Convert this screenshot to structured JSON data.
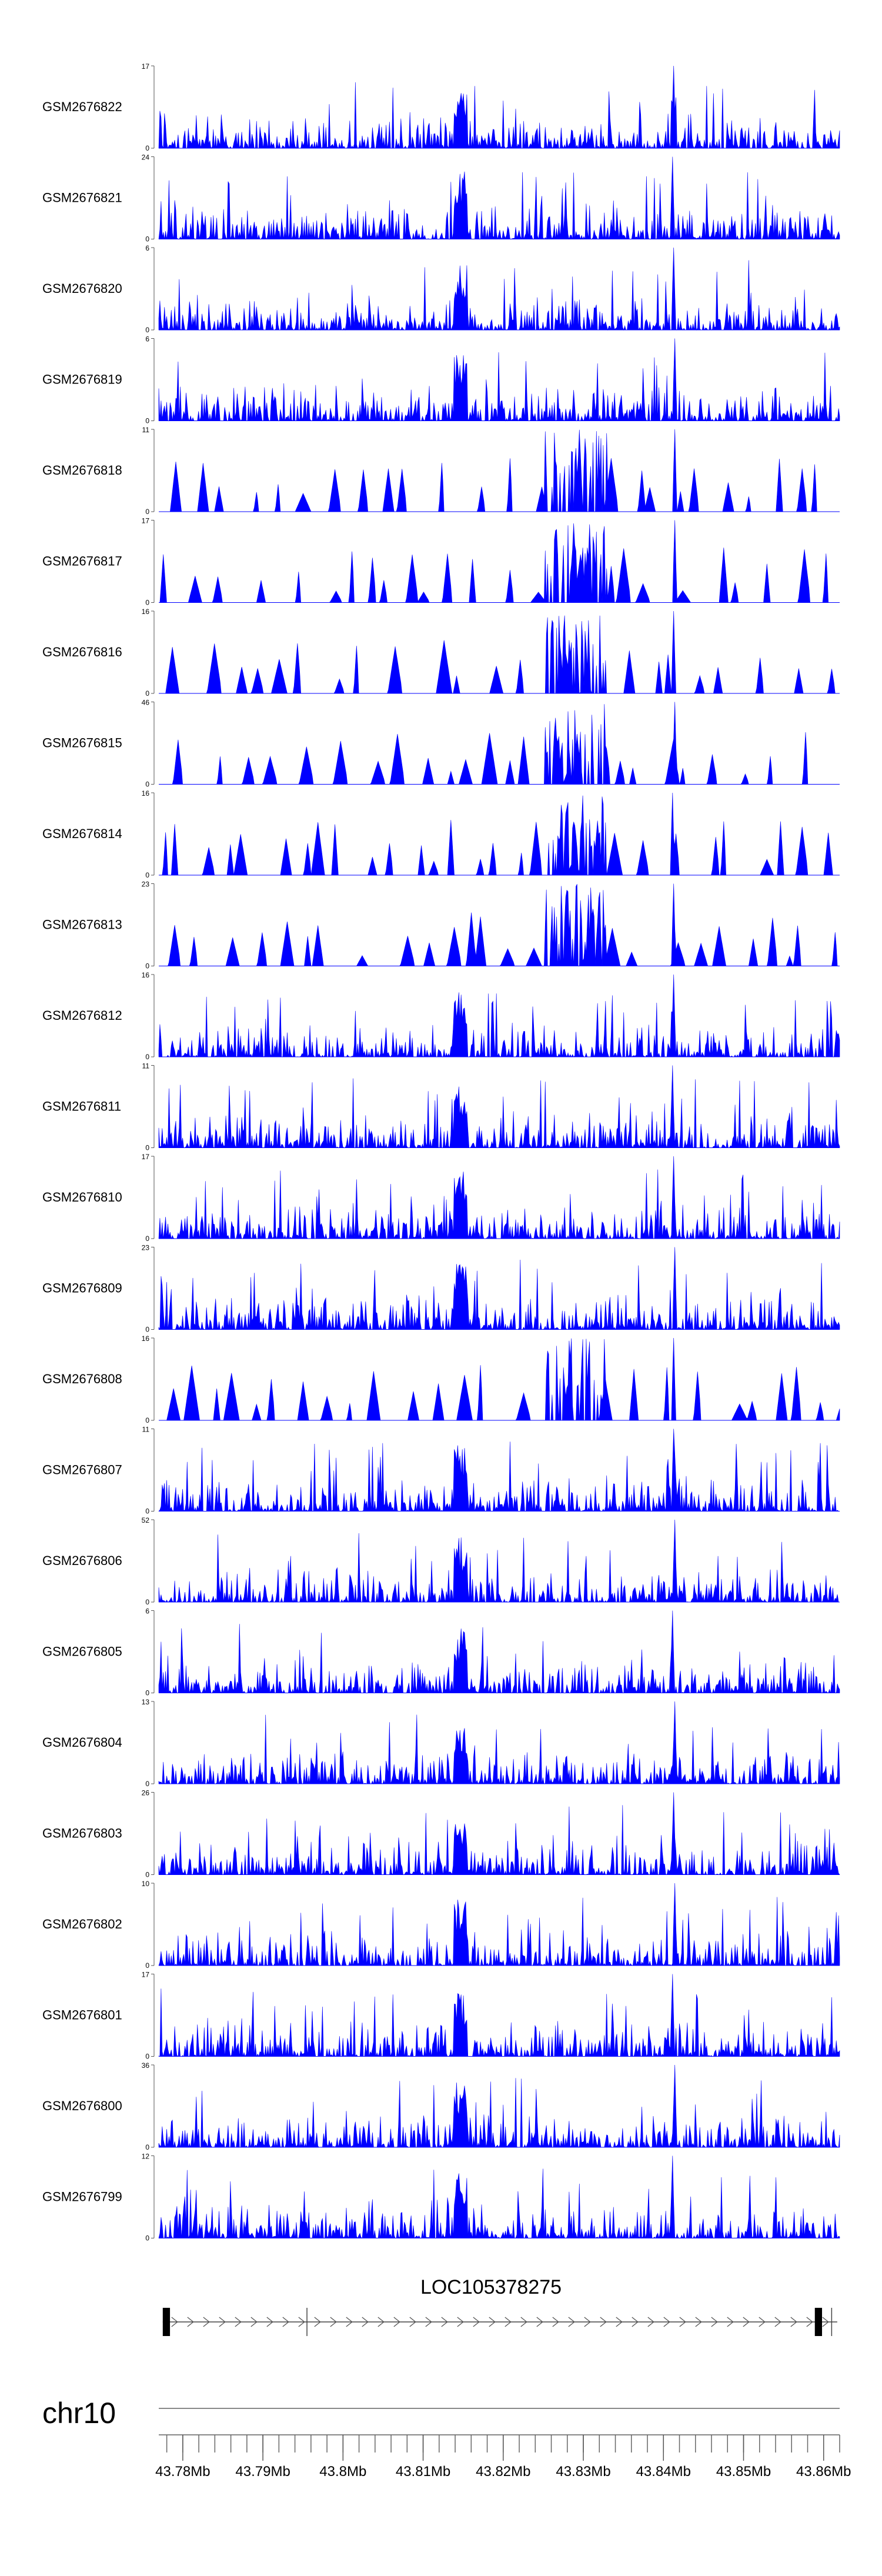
{
  "chart_data": {
    "type": "area",
    "genome": "hg38",
    "chromosome": "chr10",
    "x_axis": {
      "unit": "Mb",
      "range": [
        43.777,
        43.862
      ],
      "major_ticks": [
        43.78,
        43.79,
        43.8,
        43.81,
        43.82,
        43.83,
        43.84,
        43.85,
        43.86
      ],
      "tick_labels": [
        "43.78Mb",
        "43.79Mb",
        "43.8Mb",
        "43.81Mb",
        "43.82Mb",
        "43.83Mb",
        "43.84Mb",
        "43.85Mb",
        "43.86Mb"
      ]
    },
    "tracks": [
      {
        "name": "GSM2676822",
        "max": 17,
        "min": 0
      },
      {
        "name": "GSM2676821",
        "max": 24,
        "min": 0
      },
      {
        "name": "GSM2676820",
        "max": 6,
        "min": 0
      },
      {
        "name": "GSM2676819",
        "max": 6,
        "min": 0
      },
      {
        "name": "GSM2676818",
        "max": 11,
        "min": 0
      },
      {
        "name": "GSM2676817",
        "max": 17,
        "min": 0
      },
      {
        "name": "GSM2676816",
        "max": 16,
        "min": 0
      },
      {
        "name": "GSM2676815",
        "max": 46,
        "min": 0
      },
      {
        "name": "GSM2676814",
        "max": 16,
        "min": 0
      },
      {
        "name": "GSM2676813",
        "max": 23,
        "min": 0
      },
      {
        "name": "GSM2676812",
        "max": 16,
        "min": 0
      },
      {
        "name": "GSM2676811",
        "max": 11,
        "min": 0
      },
      {
        "name": "GSM2676810",
        "max": 17,
        "min": 0
      },
      {
        "name": "GSM2676809",
        "max": 23,
        "min": 0
      },
      {
        "name": "GSM2676808",
        "max": 16,
        "min": 0
      },
      {
        "name": "GSM2676807",
        "max": 11,
        "min": 0
      },
      {
        "name": "GSM2676806",
        "max": 52,
        "min": 0
      },
      {
        "name": "GSM2676805",
        "max": 6,
        "min": 0
      },
      {
        "name": "GSM2676804",
        "max": 13,
        "min": 0
      },
      {
        "name": "GSM2676803",
        "max": 26,
        "min": 0
      },
      {
        "name": "GSM2676802",
        "max": 10,
        "min": 0
      },
      {
        "name": "GSM2676801",
        "max": 17,
        "min": 0
      },
      {
        "name": "GSM2676800",
        "max": 36,
        "min": 0
      },
      {
        "name": "GSM2676799",
        "max": 12,
        "min": 0
      }
    ],
    "gene": {
      "name": "LOC105378275",
      "start": 43.7775,
      "end": 43.8617,
      "strand": "+",
      "exons": [
        [
          43.7775,
          43.7784
        ],
        [
          43.8589,
          43.8598
        ]
      ],
      "minor_marks": [
        43.7955,
        43.861
      ]
    },
    "series_color": "#0000ff"
  }
}
